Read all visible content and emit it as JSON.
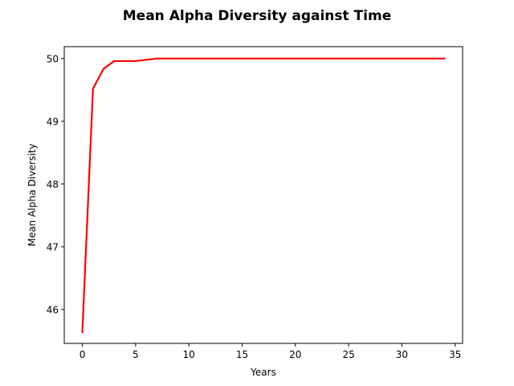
{
  "chart_data": {
    "type": "line",
    "title": "Mean Alpha Diversity against Time",
    "xlabel": "Years",
    "ylabel": "Mean Alpha Diversity",
    "xlim": [
      -1.7,
      35.7
    ],
    "ylim": [
      45.46,
      50.19
    ],
    "xticks": [
      0,
      5,
      10,
      15,
      20,
      25,
      30,
      35
    ],
    "yticks": [
      46,
      47,
      48,
      49,
      50
    ],
    "grid": false,
    "series": [
      {
        "color": "#ff0000",
        "x": [
          0,
          1,
          2,
          3,
          4,
          5,
          6,
          7,
          8,
          9,
          10,
          11,
          12,
          13,
          14,
          15,
          16,
          17,
          18,
          19,
          20,
          21,
          22,
          23,
          24,
          25,
          26,
          27,
          28,
          29,
          30,
          31,
          32,
          33,
          34
        ],
        "y": [
          45.64,
          49.52,
          49.84,
          49.96,
          49.96,
          49.96,
          49.98,
          50.0,
          50.0,
          50.0,
          50.0,
          50.0,
          50.0,
          50.0,
          50.0,
          50.0,
          50.0,
          50.0,
          50.0,
          50.0,
          50.0,
          50.0,
          50.0,
          50.0,
          50.0,
          50.0,
          50.0,
          50.0,
          50.0,
          50.0,
          50.0,
          50.0,
          50.0,
          50.0,
          50.0
        ]
      }
    ]
  }
}
